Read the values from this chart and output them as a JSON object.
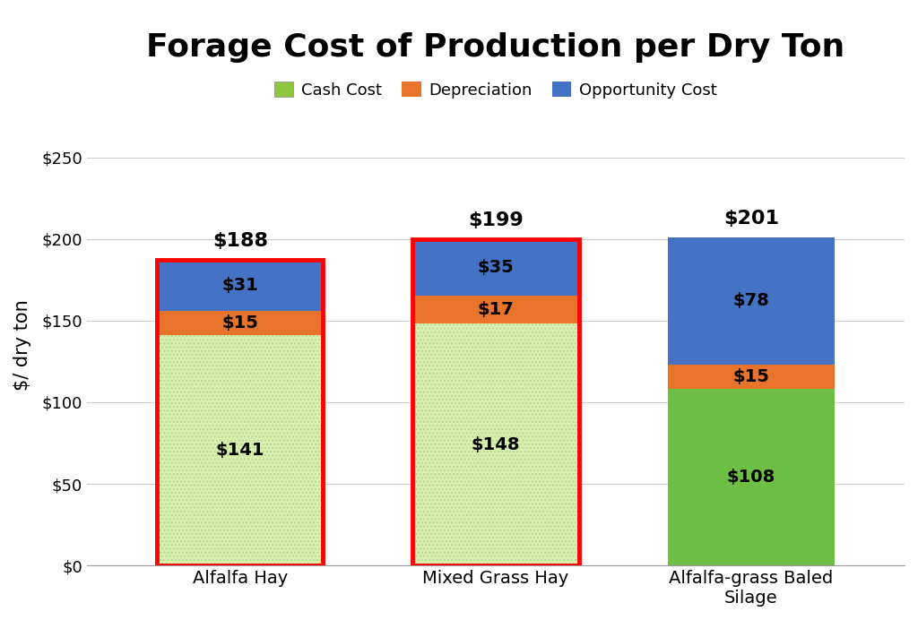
{
  "title": "Forage Cost of Production per Dry Ton",
  "ylabel": "$/ dry ton",
  "categories": [
    "Alfalfa Hay",
    "Mixed Grass Hay",
    "Alfalfa-grass Baled\nSilage"
  ],
  "cash_cost": [
    141,
    148,
    108
  ],
  "depreciation": [
    15,
    17,
    15
  ],
  "opportunity_cost": [
    31,
    35,
    78
  ],
  "totals": [
    188,
    199,
    201
  ],
  "cash_cost_color_light": "#d8f0b0",
  "cash_cost_color_solid": "#6dbe45",
  "depreciation_color": "#e8732a",
  "opportunity_cost_color": "#4472c4",
  "ylim": [
    0,
    270
  ],
  "yticks": [
    0,
    50,
    100,
    150,
    200,
    250
  ],
  "ytick_labels": [
    "$0",
    "$50",
    "$100",
    "$150",
    "$200",
    "$250"
  ],
  "legend_labels": [
    "Cash Cost",
    "Depreciation",
    "Opportunity Cost"
  ],
  "legend_colors_cash": "#8dc63f",
  "legend_colors_dep": "#e8732a",
  "legend_colors_opp": "#4472c4",
  "background_color": "#ffffff",
  "bar_width": 0.65,
  "title_fontsize": 26,
  "label_fontsize": 14,
  "tick_fontsize": 13,
  "annotation_fontsize": 14,
  "total_fontsize": 16,
  "grid_color": "#cccccc"
}
